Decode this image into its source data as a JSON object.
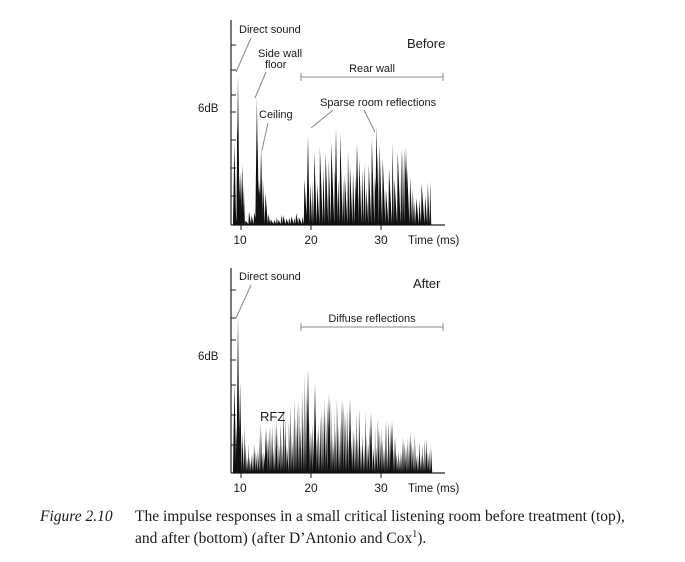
{
  "figure": {
    "before": {
      "panel_label": "Before",
      "y_label": "6dB",
      "annotations": {
        "direct_sound": "Direct sound",
        "side_wall_1": "Side wall",
        "side_wall_2": "floor",
        "ceiling": "Ceiling",
        "rear_wall": "Rear wall",
        "sparse": "Sparse room reflections"
      },
      "x_ticks": [
        "10",
        "20",
        "30"
      ],
      "x_axis_label": "Time (ms)"
    },
    "after": {
      "panel_label": "After",
      "y_label": "6dB",
      "annotations": {
        "direct_sound": "Direct sound",
        "diffuse": "Diffuse reflections",
        "rfz": "RFZ"
      },
      "x_ticks": [
        "10",
        "20",
        "30"
      ],
      "x_axis_label": "Time (ms)"
    }
  },
  "caption": {
    "label": "Figure 2.10",
    "line1": "The impulse responses in a small critical listening room before treatment (top),",
    "line2_pre": "and after (bottom) (after D’Antonio and Cox",
    "ref": "1",
    "line2_post": ")."
  },
  "chart_data": [
    {
      "type": "area",
      "panel": "Before",
      "x": [
        8.5,
        9.0,
        9.3,
        9.6,
        11.7,
        12.0,
        12.3,
        19.0,
        23.0,
        26.0,
        28.8,
        33.0
      ],
      "values": [
        5.5,
        10.0,
        3.5,
        4.0,
        8.5,
        3.0,
        5.2,
        6.0,
        6.5,
        5.5,
        6.6,
        5.2
      ],
      "ylabel": "6dB",
      "xlabel": "Time (ms)",
      "xlim": [
        8.0,
        38.0
      ],
      "ylim": [
        0,
        14
      ]
    },
    {
      "type": "area",
      "panel": "After",
      "x": [
        8.5,
        9.0,
        9.3,
        13.0,
        19.0,
        20.0,
        22.0,
        25.0,
        28.0,
        31.0
      ],
      "values": [
        6.0,
        10.5,
        6.0,
        3.0,
        7.0,
        6.0,
        5.3,
        5.0,
        4.0,
        3.5
      ],
      "ylabel": "6dB",
      "xlabel": "Time (ms)",
      "xlim": [
        8.0,
        38.0
      ],
      "ylim": [
        0,
        14
      ]
    }
  ]
}
